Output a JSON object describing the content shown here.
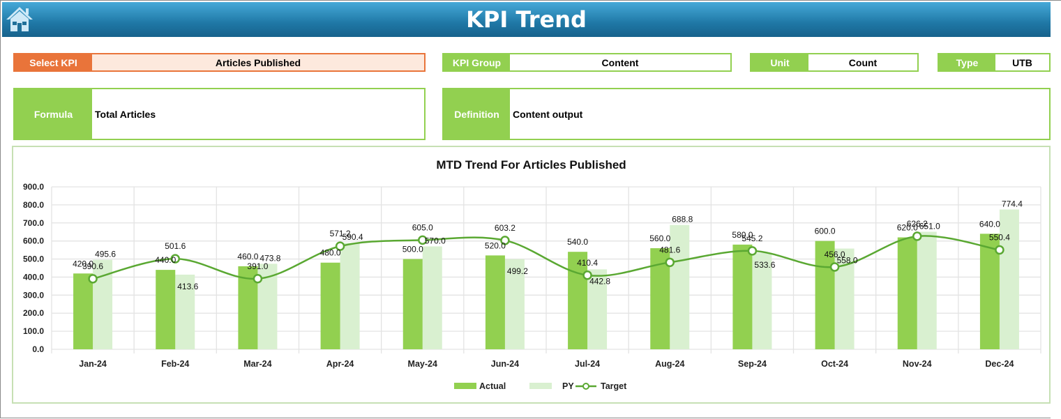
{
  "header": {
    "title": "KPI Trend",
    "home_icon": "home-icon"
  },
  "fields": {
    "select_kpi": {
      "label": "Select KPI",
      "value": "Articles Published"
    },
    "kpi_group": {
      "label": "KPI Group",
      "value": "Content"
    },
    "unit": {
      "label": "Unit",
      "value": "Count"
    },
    "type": {
      "label": "Type",
      "value": "UTB"
    },
    "formula": {
      "label": "Formula",
      "value": "Total Articles"
    },
    "definition": {
      "label": "Definition",
      "value": "Content output"
    }
  },
  "colors": {
    "actual": "#92d050",
    "py": "#d9f0d0",
    "target": "#5aa832",
    "header": "#1f78a6",
    "accent_orange": "#e9743a"
  },
  "chart_data": {
    "type": "bar",
    "title": "MTD Trend For Articles Published",
    "xlabel": "",
    "ylabel": "",
    "ylim": [
      0,
      900
    ],
    "yticks": [
      "0.0",
      "100.0",
      "200.0",
      "300.0",
      "400.0",
      "500.0",
      "600.0",
      "700.0",
      "800.0",
      "900.0"
    ],
    "grid": true,
    "legend_position": "bottom",
    "categories": [
      "Jan-24",
      "Feb-24",
      "Mar-24",
      "Apr-24",
      "May-24",
      "Jun-24",
      "Jul-24",
      "Aug-24",
      "Sep-24",
      "Oct-24",
      "Nov-24",
      "Dec-24"
    ],
    "series": [
      {
        "name": "Actual",
        "type": "bar",
        "values": [
          420.0,
          440.0,
          460.0,
          480.0,
          500.0,
          520.0,
          540.0,
          560.0,
          580.0,
          600.0,
          620.0,
          640.0
        ]
      },
      {
        "name": "PY",
        "type": "bar",
        "values": [
          495.6,
          413.6,
          473.8,
          590.4,
          570.0,
          499.2,
          442.8,
          688.8,
          533.6,
          558.0,
          651.0,
          774.4
        ]
      },
      {
        "name": "Target",
        "type": "line",
        "values": [
          390.6,
          501.6,
          391.0,
          571.2,
          605.0,
          603.2,
          410.4,
          481.6,
          545.2,
          456.0,
          626.2,
          550.4
        ]
      }
    ]
  }
}
